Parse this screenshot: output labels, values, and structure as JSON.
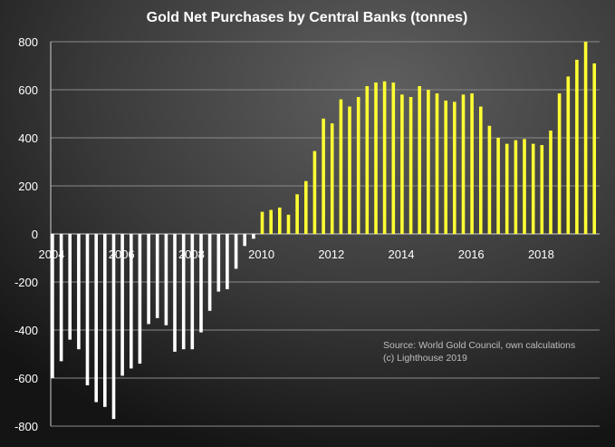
{
  "chart_data": {
    "type": "bar",
    "title": "Gold Net Purchases by Central Banks (tonnes)",
    "xlabel": "",
    "ylabel": "",
    "ylim": [
      -800,
      800
    ],
    "yticks": [
      -800,
      -600,
      -400,
      -200,
      0,
      200,
      400,
      600,
      800
    ],
    "xtick_labels": [
      "2004",
      "2006",
      "2008",
      "2010",
      "2012",
      "2014",
      "2016",
      "2018"
    ],
    "grid": true,
    "legend": "none",
    "x_start": 2004.0,
    "x_step": 0.25,
    "values": [
      -600,
      -530,
      -440,
      -480,
      -630,
      -700,
      -720,
      -770,
      -590,
      -560,
      -540,
      -375,
      -350,
      -380,
      -490,
      -480,
      -480,
      -410,
      -320,
      -240,
      -230,
      -145,
      -50,
      -20,
      92,
      100,
      110,
      80,
      165,
      220,
      345,
      480,
      460,
      560,
      530,
      570,
      615,
      630,
      635,
      630,
      580,
      570,
      615,
      600,
      585,
      555,
      550,
      580,
      585,
      530,
      450,
      400,
      375,
      390,
      395,
      375,
      370,
      430,
      585,
      655,
      725,
      800,
      710
    ],
    "colors": {
      "negative": "#ffffff",
      "positive": "#ffff33"
    }
  },
  "source_note": [
    "Source: World Gold Council, own calculations",
    "(c) Lighthouse 2019"
  ]
}
